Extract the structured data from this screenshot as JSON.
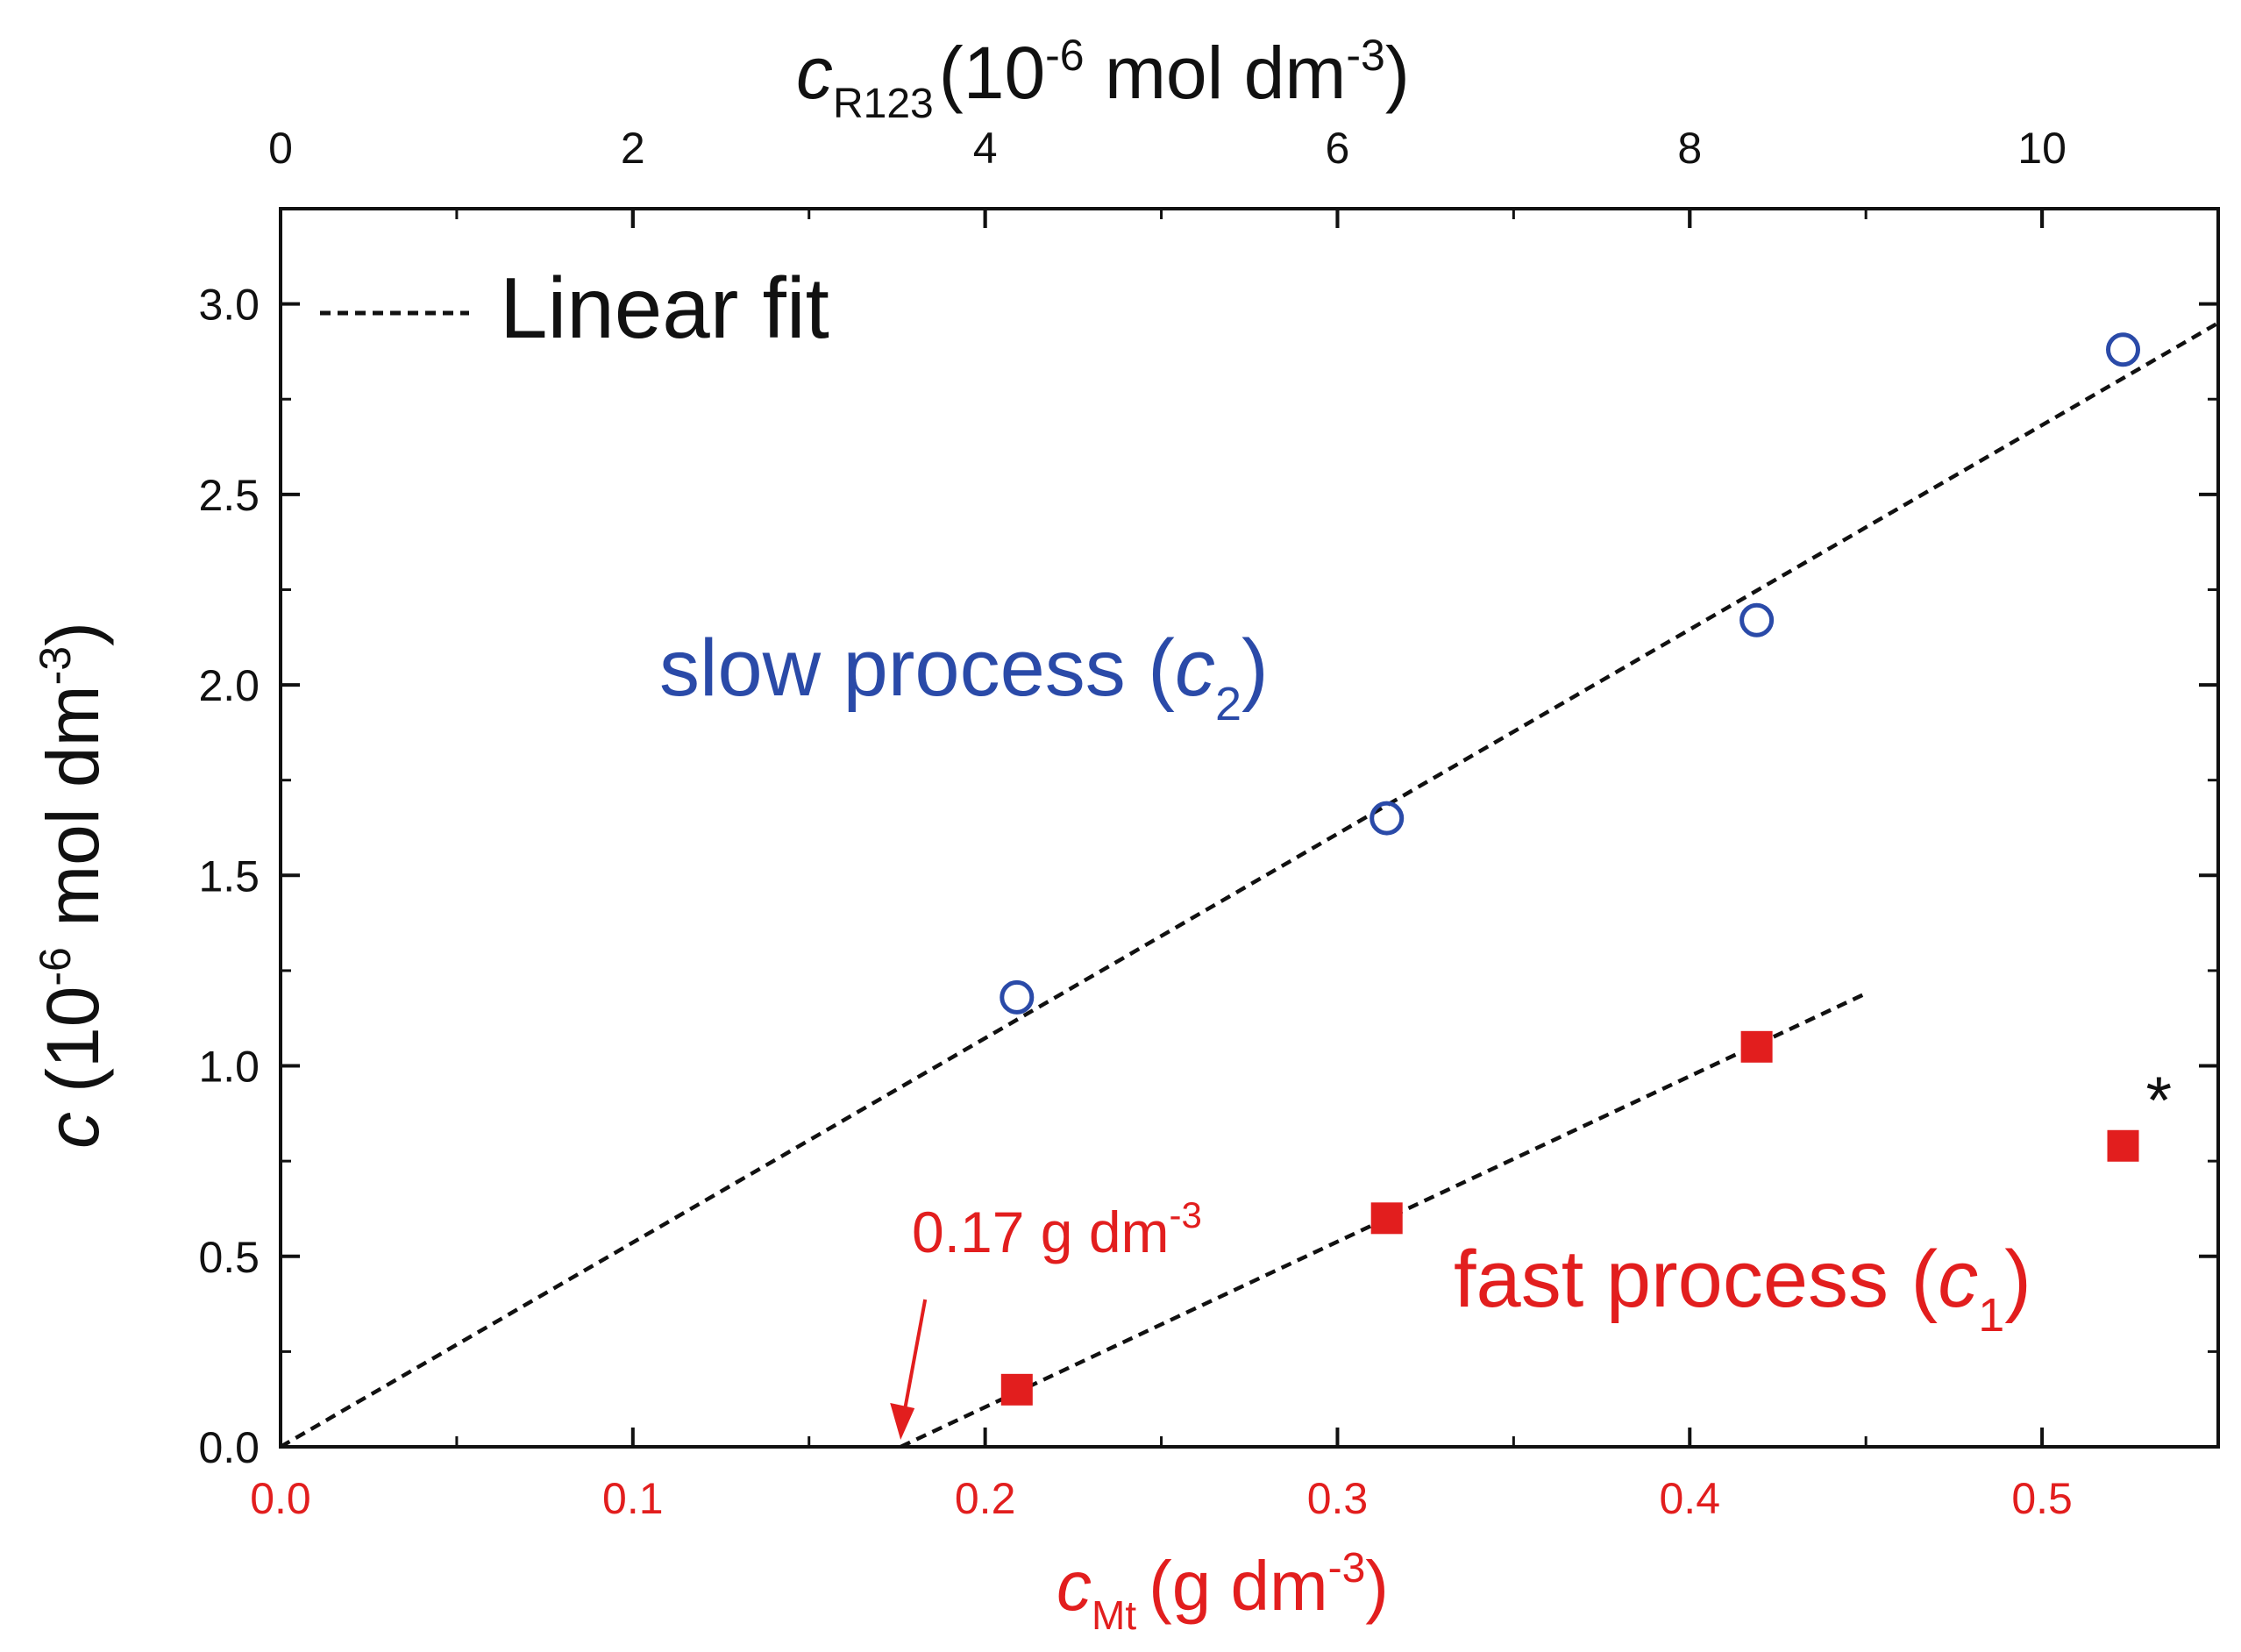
{
  "chart_data": {
    "type": "scatter",
    "legend": {
      "label": "Linear fit",
      "position": "top-left"
    },
    "colors": {
      "slow": "#2a4aa8",
      "fast": "#e21e1e",
      "fit": "#111111",
      "axis": "#111111"
    },
    "x_bottom": {
      "label_var": "c",
      "label_sub": "Mt",
      "label_unit": "(g dm",
      "label_unit_sup": "-3",
      "label_close": ")",
      "range": [
        0,
        0.55
      ],
      "ticks": [
        0.0,
        0.1,
        0.2,
        0.3,
        0.4,
        0.5
      ],
      "tick_labels": [
        "0.0",
        "0.1",
        "0.2",
        "0.3",
        "0.4",
        "0.5"
      ],
      "minor_step": 0.05
    },
    "x_top": {
      "label_var": "c",
      "label_sub": "R123",
      "label_unit": "(10",
      "label_unit_sup": "-6",
      "label_unit2": " mol dm",
      "label_unit2_sup": "-3",
      "label_close": ")",
      "range": [
        0,
        11
      ],
      "ticks": [
        0,
        2,
        4,
        6,
        8,
        10
      ],
      "tick_labels": [
        "0",
        "2",
        "4",
        "6",
        "8",
        "10"
      ],
      "minor_step": 1
    },
    "y": {
      "label_var": "c",
      "label_unit": "(10",
      "label_unit_sup": "-6",
      "label_unit2": " mol dm",
      "label_unit2_sup": "-3",
      "label_close": ")",
      "range": [
        0,
        3.25
      ],
      "ticks": [
        0.0,
        0.5,
        1.0,
        1.5,
        2.0,
        2.5,
        3.0
      ],
      "tick_labels": [
        "0.0",
        "0.5",
        "1.0",
        "1.5",
        "2.0",
        "2.5",
        "3.0"
      ],
      "minor_step": 0.25
    },
    "series": [
      {
        "name": "slow",
        "label_text": "slow process (",
        "label_var": "c",
        "label_sub": "2",
        "label_close": ")",
        "marker": "open-circle",
        "x": [
          0.209,
          0.314,
          0.419,
          0.523
        ],
        "y": [
          1.18,
          1.65,
          2.17,
          2.88
        ]
      },
      {
        "name": "fast",
        "label_text": "fast process (",
        "label_var": "c",
        "label_sub": "1",
        "label_close": ")",
        "marker": "filled-square",
        "x": [
          0.209,
          0.314,
          0.419,
          0.523
        ],
        "y": [
          0.15,
          0.6,
          1.05,
          0.79
        ]
      }
    ],
    "fits": [
      {
        "series": "slow",
        "x_start": 0.0,
        "y_start": 0.0,
        "x_end": 0.55,
        "y_end": 2.95
      },
      {
        "series": "fast",
        "x_start": 0.176,
        "y_start": 0.0,
        "x_end": 0.45,
        "y_end": 1.19
      }
    ],
    "annotations": {
      "intercept_text": "0.17 g dm",
      "intercept_sup": "-3",
      "intercept_x": 0.176,
      "outlier_mark": "*"
    }
  }
}
